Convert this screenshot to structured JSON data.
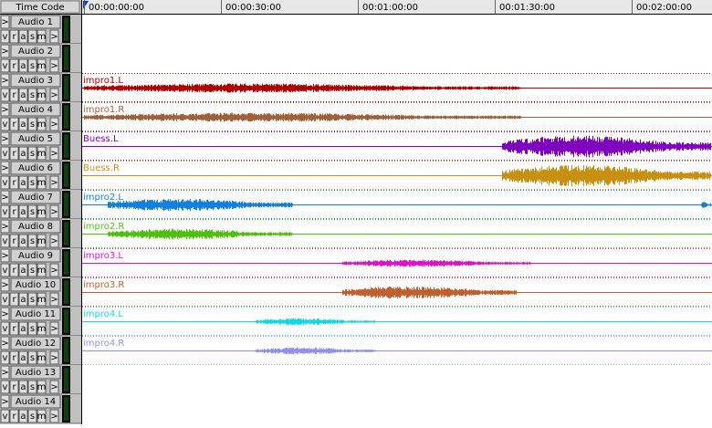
{
  "header": {
    "time_code": "Time Code",
    "ruler": [
      "00:00:00:00",
      "00:00:30:00",
      "00:01:00:00",
      "00:01:30:00",
      "00:02:00:00"
    ]
  },
  "expand": ">",
  "track_buttons": [
    "v",
    "r",
    "a",
    "s",
    "m",
    ">"
  ],
  "tracks": [
    {
      "name": "Audio 1"
    },
    {
      "name": "Audio 2"
    },
    {
      "name": "Audio 3",
      "region": {
        "name": "impro1.L",
        "color": "#b00000"
      }
    },
    {
      "name": "Audio 4",
      "region": {
        "name": "impro1.R",
        "color": "#a0603a"
      }
    },
    {
      "name": "Audio 5",
      "region": {
        "name": "Buess.L",
        "color": "#8000c0"
      }
    },
    {
      "name": "Audio 6",
      "region": {
        "name": "Buess.R",
        "color": "#c89010"
      }
    },
    {
      "name": "Audio 7",
      "region": {
        "name": "impro2.L",
        "color": "#1080e0"
      }
    },
    {
      "name": "Audio 8",
      "region": {
        "name": "impro2.R",
        "color": "#50c010"
      }
    },
    {
      "name": "Audio 9",
      "region": {
        "name": "impro3.L",
        "color": "#e010d0"
      }
    },
    {
      "name": "Audio 10",
      "region": {
        "name": "impro3.R",
        "color": "#c06030"
      }
    },
    {
      "name": "Audio 11",
      "region": {
        "name": "impro4.L",
        "color": "#10d8e8"
      }
    },
    {
      "name": "Audio 12",
      "region": {
        "name": "impro4.R",
        "color": "#9090f0"
      }
    },
    {
      "name": "Audio 13"
    },
    {
      "name": "Audio 14"
    }
  ]
}
